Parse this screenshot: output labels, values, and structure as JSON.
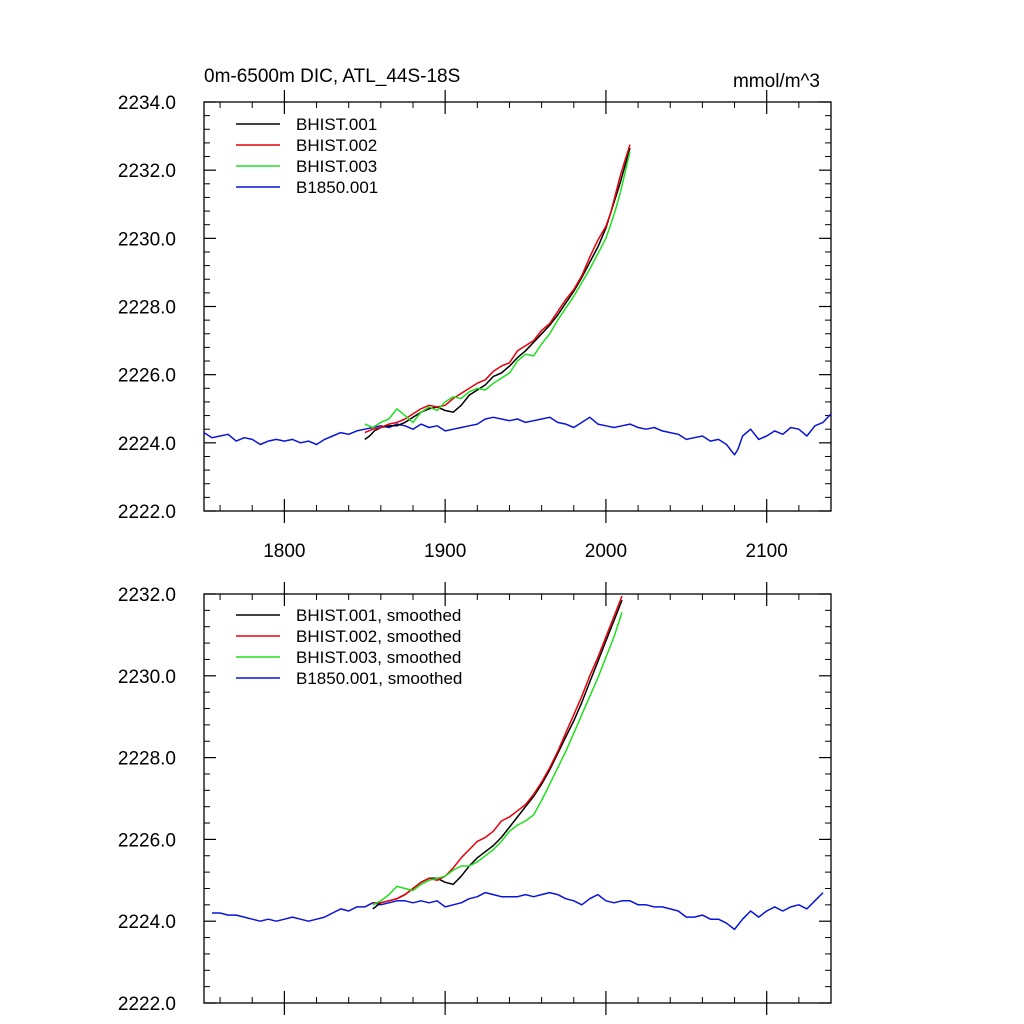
{
  "figure": {
    "title_left": "0m-6500m DIC, ATL_44S-18S",
    "title_right": "mmol/m^3"
  },
  "colors": {
    "BHIST.001": "#000000",
    "BHIST.002": "#e8000b",
    "BHIST.003": "#1ee01e",
    "B1850.001": "#0a14d8"
  },
  "chart_data": [
    {
      "type": "line",
      "panel": "top",
      "title": "0m-6500m DIC, ATL_44S-18S",
      "units": "mmol/m^3",
      "xlim": [
        1750,
        2140
      ],
      "ylim": [
        2222.0,
        2234.0
      ],
      "x_ticks": [
        1800,
        1900,
        2000,
        2100
      ],
      "x_tick_labels": [
        "1800",
        "1900",
        "2000",
        "2100"
      ],
      "y_ticks": [
        2222.0,
        2224.0,
        2226.0,
        2228.0,
        2230.0,
        2232.0,
        2234.0
      ],
      "y_tick_labels": [
        "2222.0",
        "2224.0",
        "2226.0",
        "2228.0",
        "2230.0",
        "2232.0",
        "2234.0"
      ],
      "legend_position": "top-left",
      "series": [
        {
          "name": "BHIST.001",
          "x": [
            1850,
            1853,
            1856,
            1860,
            1865,
            1870,
            1875,
            1880,
            1885,
            1890,
            1895,
            1900,
            1905,
            1910,
            1915,
            1920,
            1925,
            1930,
            1935,
            1940,
            1945,
            1950,
            1955,
            1960,
            1965,
            1970,
            1975,
            1980,
            1985,
            1990,
            1995,
            2000,
            2003,
            2006,
            2009,
            2012,
            2015
          ],
          "y": [
            2224.1,
            2224.2,
            2224.35,
            2224.45,
            2224.5,
            2224.5,
            2224.6,
            2224.75,
            2224.9,
            2225.0,
            2225.05,
            2224.95,
            2224.9,
            2225.1,
            2225.4,
            2225.55,
            2225.7,
            2225.95,
            2226.05,
            2226.25,
            2226.5,
            2226.7,
            2226.95,
            2227.2,
            2227.45,
            2227.75,
            2228.1,
            2228.45,
            2228.85,
            2229.3,
            2229.75,
            2230.3,
            2230.75,
            2231.2,
            2231.65,
            2232.15,
            2232.65
          ]
        },
        {
          "name": "BHIST.002",
          "x": [
            1850,
            1855,
            1860,
            1865,
            1870,
            1875,
            1880,
            1885,
            1890,
            1895,
            1900,
            1905,
            1910,
            1915,
            1920,
            1925,
            1930,
            1935,
            1940,
            1945,
            1950,
            1955,
            1960,
            1965,
            1970,
            1975,
            1980,
            1985,
            1990,
            1995,
            2000,
            2003,
            2006,
            2009,
            2012,
            2015
          ],
          "y": [
            2224.3,
            2224.4,
            2224.45,
            2224.55,
            2224.6,
            2224.7,
            2224.85,
            2225.0,
            2225.1,
            2225.05,
            2225.1,
            2225.3,
            2225.45,
            2225.6,
            2225.75,
            2225.85,
            2226.1,
            2226.25,
            2226.35,
            2226.7,
            2226.85,
            2227.0,
            2227.3,
            2227.5,
            2227.85,
            2228.2,
            2228.5,
            2228.9,
            2229.45,
            2229.95,
            2230.35,
            2230.75,
            2231.3,
            2231.85,
            2232.3,
            2232.75
          ]
        },
        {
          "name": "BHIST.003",
          "x": [
            1850,
            1855,
            1860,
            1865,
            1870,
            1875,
            1880,
            1885,
            1890,
            1895,
            1900,
            1905,
            1910,
            1915,
            1920,
            1925,
            1930,
            1935,
            1940,
            1945,
            1950,
            1955,
            1960,
            1965,
            1970,
            1975,
            1980,
            1985,
            1990,
            1995,
            2000,
            2003,
            2006,
            2009,
            2012,
            2015
          ],
          "y": [
            2224.55,
            2224.45,
            2224.6,
            2224.7,
            2225.0,
            2224.8,
            2224.6,
            2224.9,
            2225.05,
            2224.95,
            2225.2,
            2225.35,
            2225.3,
            2225.5,
            2225.6,
            2225.55,
            2225.75,
            2225.9,
            2226.05,
            2226.4,
            2226.6,
            2226.55,
            2226.9,
            2227.2,
            2227.6,
            2227.95,
            2228.3,
            2228.7,
            2229.1,
            2229.55,
            2230.0,
            2230.4,
            2230.85,
            2231.35,
            2231.95,
            2232.55
          ]
        },
        {
          "name": "B1850.001",
          "x": [
            1750,
            1755,
            1760,
            1765,
            1770,
            1775,
            1780,
            1785,
            1790,
            1795,
            1800,
            1805,
            1810,
            1815,
            1820,
            1825,
            1830,
            1835,
            1840,
            1845,
            1850,
            1855,
            1860,
            1865,
            1870,
            1875,
            1880,
            1885,
            1890,
            1895,
            1900,
            1905,
            1910,
            1915,
            1920,
            1925,
            1930,
            1935,
            1940,
            1945,
            1950,
            1955,
            1960,
            1965,
            1970,
            1975,
            1980,
            1985,
            1990,
            1995,
            2000,
            2005,
            2010,
            2015,
            2020,
            2025,
            2030,
            2035,
            2040,
            2045,
            2050,
            2055,
            2060,
            2065,
            2070,
            2075,
            2080,
            2082,
            2085,
            2090,
            2095,
            2100,
            2105,
            2110,
            2115,
            2120,
            2125,
            2130,
            2135,
            2140
          ],
          "y": [
            2224.3,
            2224.15,
            2224.2,
            2224.25,
            2224.05,
            2224.15,
            2224.1,
            2223.95,
            2224.05,
            2224.1,
            2224.05,
            2224.1,
            2224.0,
            2224.05,
            2223.95,
            2224.1,
            2224.2,
            2224.3,
            2224.25,
            2224.35,
            2224.4,
            2224.45,
            2224.5,
            2224.45,
            2224.55,
            2224.5,
            2224.4,
            2224.55,
            2224.45,
            2224.5,
            2224.35,
            2224.4,
            2224.45,
            2224.5,
            2224.55,
            2224.7,
            2224.75,
            2224.7,
            2224.65,
            2224.7,
            2224.6,
            2224.65,
            2224.7,
            2224.75,
            2224.6,
            2224.55,
            2224.45,
            2224.6,
            2224.75,
            2224.55,
            2224.5,
            2224.45,
            2224.5,
            2224.55,
            2224.45,
            2224.4,
            2224.45,
            2224.35,
            2224.3,
            2224.25,
            2224.1,
            2224.15,
            2224.2,
            2224.05,
            2224.1,
            2223.95,
            2223.65,
            2223.8,
            2224.2,
            2224.4,
            2224.1,
            2224.2,
            2224.35,
            2224.25,
            2224.45,
            2224.4,
            2224.2,
            2224.5,
            2224.6,
            2224.85
          ]
        }
      ]
    },
    {
      "type": "line",
      "panel": "bottom",
      "xlim": [
        1750,
        2140
      ],
      "ylim": [
        2222.0,
        2232.0
      ],
      "x_ticks": [
        1800,
        1900,
        2000,
        2100
      ],
      "y_ticks": [
        2222.0,
        2224.0,
        2226.0,
        2228.0,
        2230.0,
        2232.0
      ],
      "y_tick_labels": [
        "2222.0",
        "2224.0",
        "2226.0",
        "2228.0",
        "2230.0",
        "2232.0"
      ],
      "legend_position": "top-left",
      "series": [
        {
          "name": "BHIST.001, smoothed",
          "x": [
            1855,
            1860,
            1865,
            1870,
            1875,
            1880,
            1885,
            1890,
            1895,
            1900,
            1905,
            1910,
            1915,
            1920,
            1925,
            1930,
            1935,
            1940,
            1945,
            1950,
            1955,
            1960,
            1965,
            1970,
            1975,
            1980,
            1985,
            1990,
            1995,
            2000,
            2005,
            2010
          ],
          "y": [
            2224.3,
            2224.45,
            2224.5,
            2224.55,
            2224.65,
            2224.8,
            2224.95,
            2225.05,
            2225.05,
            2224.95,
            2224.9,
            2225.1,
            2225.35,
            2225.55,
            2225.7,
            2225.85,
            2226.05,
            2226.3,
            2226.55,
            2226.8,
            2227.05,
            2227.35,
            2227.7,
            2228.1,
            2228.5,
            2228.9,
            2229.35,
            2229.85,
            2230.35,
            2230.85,
            2231.35,
            2231.85
          ]
        },
        {
          "name": "BHIST.002, smoothed",
          "x": [
            1855,
            1860,
            1865,
            1870,
            1875,
            1880,
            1885,
            1890,
            1895,
            1900,
            1905,
            1910,
            1915,
            1920,
            1925,
            1930,
            1935,
            1940,
            1945,
            1950,
            1955,
            1960,
            1965,
            1970,
            1975,
            1980,
            1985,
            1990,
            1995,
            2000,
            2005,
            2010
          ],
          "y": [
            2224.45,
            2224.45,
            2224.5,
            2224.55,
            2224.65,
            2224.8,
            2224.95,
            2225.05,
            2225.0,
            2225.1,
            2225.3,
            2225.55,
            2225.75,
            2225.95,
            2226.05,
            2226.2,
            2226.45,
            2226.55,
            2226.7,
            2226.85,
            2227.1,
            2227.4,
            2227.75,
            2228.15,
            2228.6,
            2229.05,
            2229.5,
            2230.0,
            2230.45,
            2230.95,
            2231.45,
            2231.95
          ]
        },
        {
          "name": "BHIST.003, smoothed",
          "x": [
            1855,
            1860,
            1865,
            1870,
            1875,
            1880,
            1885,
            1890,
            1895,
            1900,
            1905,
            1910,
            1915,
            1920,
            1925,
            1930,
            1935,
            1940,
            1945,
            1950,
            1955,
            1960,
            1965,
            1970,
            1975,
            1980,
            1985,
            1990,
            1995,
            2000,
            2005,
            2010
          ],
          "y": [
            2224.4,
            2224.5,
            2224.65,
            2224.85,
            2224.8,
            2224.75,
            2224.9,
            2225.0,
            2225.05,
            2225.1,
            2225.25,
            2225.35,
            2225.35,
            2225.45,
            2225.6,
            2225.75,
            2225.95,
            2226.2,
            2226.35,
            2226.45,
            2226.6,
            2226.95,
            2227.35,
            2227.75,
            2228.15,
            2228.6,
            2229.05,
            2229.5,
            2229.95,
            2230.45,
            2230.95,
            2231.55
          ]
        },
        {
          "name": "B1850.001, smoothed",
          "x": [
            1755,
            1760,
            1765,
            1770,
            1775,
            1780,
            1785,
            1790,
            1795,
            1800,
            1805,
            1810,
            1815,
            1820,
            1825,
            1830,
            1835,
            1840,
            1845,
            1850,
            1855,
            1860,
            1865,
            1870,
            1875,
            1880,
            1885,
            1890,
            1895,
            1900,
            1905,
            1910,
            1915,
            1920,
            1925,
            1930,
            1935,
            1940,
            1945,
            1950,
            1955,
            1960,
            1965,
            1970,
            1975,
            1980,
            1985,
            1990,
            1995,
            2000,
            2005,
            2010,
            2015,
            2020,
            2025,
            2030,
            2035,
            2040,
            2045,
            2050,
            2055,
            2060,
            2065,
            2070,
            2075,
            2080,
            2085,
            2090,
            2095,
            2100,
            2105,
            2110,
            2115,
            2120,
            2125,
            2130,
            2135
          ],
          "y": [
            2224.2,
            2224.2,
            2224.15,
            2224.15,
            2224.1,
            2224.05,
            2224.0,
            2224.05,
            2224.0,
            2224.05,
            2224.1,
            2224.05,
            2224.0,
            2224.05,
            2224.1,
            2224.2,
            2224.3,
            2224.25,
            2224.35,
            2224.35,
            2224.45,
            2224.4,
            2224.45,
            2224.5,
            2224.5,
            2224.45,
            2224.5,
            2224.45,
            2224.5,
            2224.35,
            2224.4,
            2224.45,
            2224.55,
            2224.6,
            2224.7,
            2224.65,
            2224.6,
            2224.6,
            2224.6,
            2224.65,
            2224.6,
            2224.65,
            2224.7,
            2224.65,
            2224.55,
            2224.5,
            2224.4,
            2224.55,
            2224.65,
            2224.5,
            2224.45,
            2224.5,
            2224.5,
            2224.4,
            2224.4,
            2224.35,
            2224.35,
            2224.3,
            2224.25,
            2224.1,
            2224.1,
            2224.15,
            2224.05,
            2224.05,
            2223.95,
            2223.8,
            2224.05,
            2224.25,
            2224.1,
            2224.25,
            2224.35,
            2224.25,
            2224.35,
            2224.4,
            2224.3,
            2224.5,
            2224.7
          ]
        }
      ]
    }
  ]
}
